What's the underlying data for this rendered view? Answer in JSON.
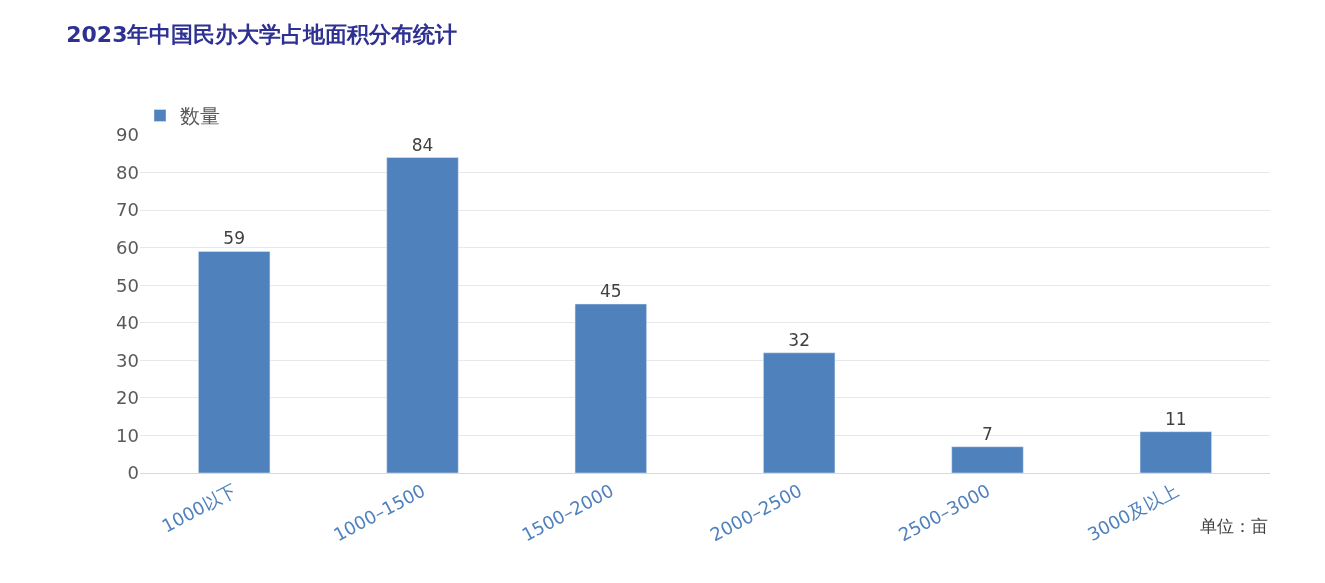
{
  "chart_data": {
    "type": "bar",
    "title": "2023年中国民办大学占地面积分布统计",
    "categories": [
      "1000以下",
      "1000–1500",
      "1500–2000",
      "2000–2500",
      "2500–3000",
      "3000及以上"
    ],
    "series": [
      {
        "name": "数量",
        "color": "#4f81bd",
        "values": [
          59,
          84,
          45,
          32,
          7,
          11
        ]
      }
    ],
    "ylim": [
      0,
      90
    ],
    "yticks": [
      0,
      10,
      20,
      30,
      40,
      50,
      60,
      70,
      80,
      90
    ],
    "grid": "y",
    "legend": "top left",
    "data_labels": true,
    "annotations": [
      "单位：亩"
    ]
  }
}
